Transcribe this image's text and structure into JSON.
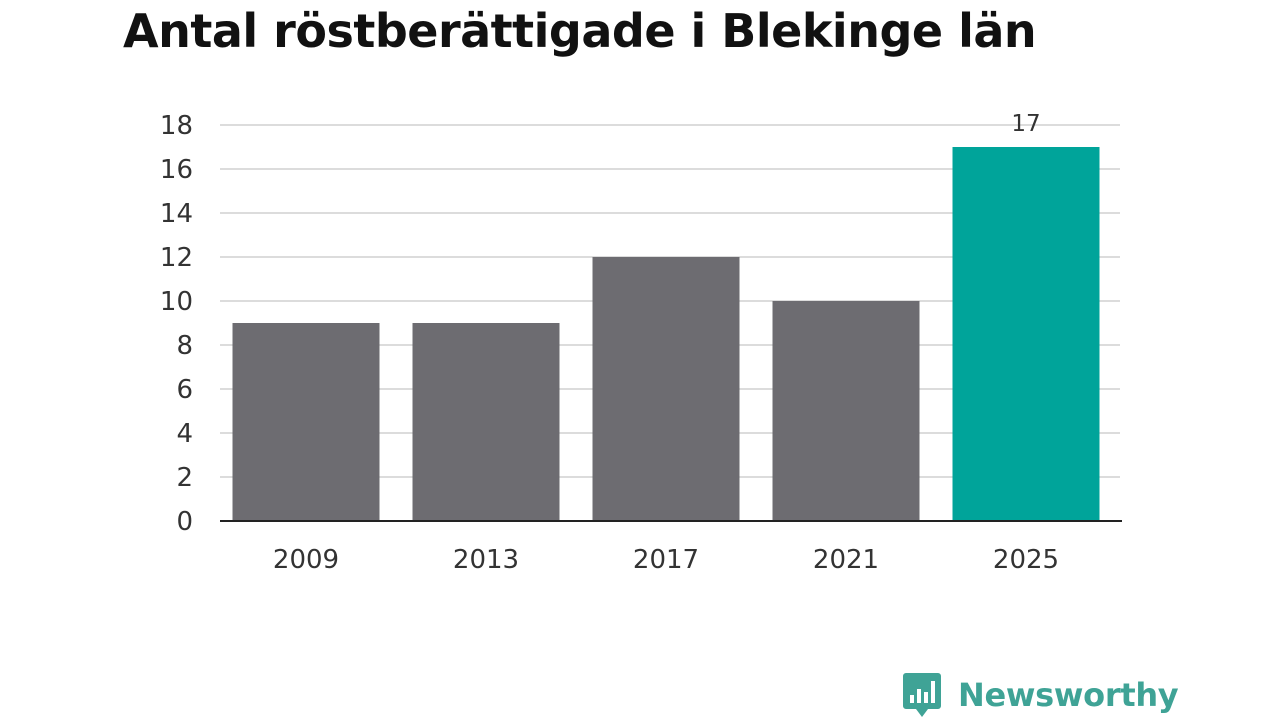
{
  "title": "Antal röstberättigade i Blekinge län",
  "logo": {
    "text": "Newsworthy",
    "icon": "bar-chart-speech-bubble-icon",
    "color": "#3fa396"
  },
  "chart_data": {
    "type": "bar",
    "title": "Antal röstberättigade i Blekinge län",
    "xlabel": "",
    "ylabel": "",
    "categories": [
      "2009",
      "2013",
      "2017",
      "2021",
      "2025"
    ],
    "values": [
      9,
      9,
      12,
      10,
      17
    ],
    "ylim": [
      0,
      18
    ],
    "yticks": [
      0,
      2,
      4,
      6,
      8,
      10,
      12,
      14,
      16,
      18
    ],
    "grid": true,
    "legend": "none",
    "data_labels": [
      {
        "category": "2025",
        "text": "17"
      }
    ],
    "colors": {
      "default": "#6d6c71",
      "highlight": "#00a49a",
      "highlight_category": "2025"
    }
  }
}
